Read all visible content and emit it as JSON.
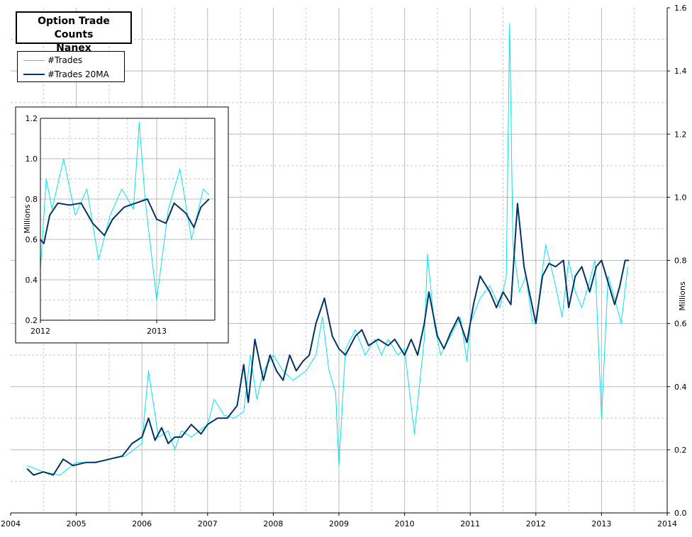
{
  "chart_data": [
    {
      "type": "line",
      "title": "Option Trade Counts",
      "subtitle": "Nanex",
      "ylabel": "Millions",
      "xlabel": "",
      "xlim": [
        2004,
        2014
      ],
      "ylim": [
        0,
        1.6
      ],
      "x_ticks": [
        "2004",
        "2005",
        "2006",
        "2007",
        "2008",
        "2009",
        "2010",
        "2011",
        "2012",
        "2013",
        "2014"
      ],
      "y_ticks": [
        "0.0",
        "0.2",
        "0.4",
        "0.6",
        "0.8",
        "1.0",
        "1.2",
        "1.4",
        "1.6"
      ],
      "grid": true,
      "legend_position": "top-left",
      "series": [
        {
          "name": "#Trades",
          "color": "#00e5ee",
          "x": [
            2004.25,
            2004.5,
            2004.75,
            2005.0,
            2005.25,
            2005.5,
            2005.75,
            2006.0,
            2006.1,
            2006.25,
            2006.4,
            2006.5,
            2006.6,
            2006.75,
            2007.0,
            2007.1,
            2007.25,
            2007.4,
            2007.55,
            2007.65,
            2007.75,
            2007.85,
            2008.0,
            2008.15,
            2008.3,
            2008.5,
            2008.65,
            2008.75,
            2008.85,
            2008.95,
            2009.0,
            2009.1,
            2009.25,
            2009.4,
            2009.55,
            2009.65,
            2009.75,
            2009.9,
            2010.0,
            2010.15,
            2010.3,
            2010.35,
            2010.45,
            2010.55,
            2010.7,
            2010.85,
            2010.95,
            2011.0,
            2011.15,
            2011.3,
            2011.45,
            2011.55,
            2011.6,
            2011.65,
            2011.75,
            2011.85,
            2011.95,
            2012.0,
            2012.15,
            2012.3,
            2012.4,
            2012.5,
            2012.6,
            2012.7,
            2012.8,
            2012.9,
            2013.0,
            2013.1,
            2013.2,
            2013.3,
            2013.4
          ],
          "values": [
            0.15,
            0.13,
            0.12,
            0.16,
            0.16,
            0.17,
            0.18,
            0.22,
            0.45,
            0.24,
            0.26,
            0.2,
            0.26,
            0.24,
            0.28,
            0.36,
            0.31,
            0.3,
            0.32,
            0.5,
            0.36,
            0.45,
            0.5,
            0.45,
            0.42,
            0.45,
            0.5,
            0.62,
            0.45,
            0.38,
            0.15,
            0.52,
            0.58,
            0.5,
            0.55,
            0.5,
            0.55,
            0.5,
            0.52,
            0.25,
            0.55,
            0.82,
            0.6,
            0.5,
            0.56,
            0.62,
            0.48,
            0.6,
            0.68,
            0.72,
            0.65,
            0.75,
            1.55,
            0.85,
            0.7,
            0.75,
            0.6,
            0.6,
            0.85,
            0.72,
            0.62,
            0.8,
            0.7,
            0.65,
            0.72,
            0.8,
            0.3,
            0.75,
            0.68,
            0.6,
            0.78
          ]
        },
        {
          "name": "#Trades 20MA",
          "color": "#003366",
          "x": [
            2004.25,
            2004.35,
            2004.5,
            2004.65,
            2004.8,
            2004.95,
            2005.15,
            2005.3,
            2005.5,
            2005.7,
            2005.85,
            2006.0,
            2006.1,
            2006.2,
            2006.3,
            2006.4,
            2006.5,
            2006.6,
            2006.75,
            2006.9,
            2007.0,
            2007.15,
            2007.3,
            2007.45,
            2007.55,
            2007.62,
            2007.72,
            2007.85,
            2007.95,
            2008.05,
            2008.15,
            2008.25,
            2008.35,
            2008.45,
            2008.55,
            2008.65,
            2008.78,
            2008.9,
            2009.0,
            2009.1,
            2009.25,
            2009.35,
            2009.45,
            2009.6,
            2009.75,
            2009.85,
            2010.0,
            2010.1,
            2010.2,
            2010.3,
            2010.37,
            2010.5,
            2010.6,
            2010.7,
            2010.82,
            2010.95,
            2011.05,
            2011.15,
            2011.3,
            2011.4,
            2011.5,
            2011.62,
            2011.72,
            2011.82,
            2011.9,
            2012.0,
            2012.1,
            2012.2,
            2012.3,
            2012.42,
            2012.5,
            2012.6,
            2012.7,
            2012.82,
            2012.92,
            2013.0,
            2013.1,
            2013.2,
            2013.28,
            2013.36,
            2013.42
          ],
          "values": [
            0.14,
            0.12,
            0.13,
            0.12,
            0.17,
            0.15,
            0.16,
            0.16,
            0.17,
            0.18,
            0.22,
            0.24,
            0.3,
            0.23,
            0.27,
            0.22,
            0.24,
            0.24,
            0.28,
            0.25,
            0.28,
            0.3,
            0.3,
            0.34,
            0.47,
            0.35,
            0.55,
            0.42,
            0.5,
            0.45,
            0.42,
            0.5,
            0.45,
            0.48,
            0.5,
            0.6,
            0.68,
            0.56,
            0.52,
            0.5,
            0.56,
            0.58,
            0.53,
            0.55,
            0.53,
            0.55,
            0.5,
            0.55,
            0.5,
            0.6,
            0.7,
            0.56,
            0.52,
            0.57,
            0.62,
            0.54,
            0.66,
            0.75,
            0.7,
            0.65,
            0.7,
            0.66,
            0.98,
            0.78,
            0.7,
            0.6,
            0.75,
            0.79,
            0.78,
            0.8,
            0.65,
            0.75,
            0.78,
            0.7,
            0.78,
            0.8,
            0.73,
            0.66,
            0.72,
            0.8,
            0.8
          ]
        }
      ]
    },
    {
      "type": "line",
      "title": "",
      "ylabel": "Millions",
      "xlabel": "",
      "xlim": [
        2012,
        2013.5
      ],
      "ylim": [
        0.2,
        1.2
      ],
      "x_ticks": [
        "2012",
        "2013"
      ],
      "y_ticks": [
        "0.2",
        "0.4",
        "0.6",
        "0.8",
        "1.0",
        "1.2"
      ],
      "grid": true,
      "series": [
        {
          "name": "#Trades",
          "color": "#00e5ee",
          "x": [
            2012.0,
            2012.05,
            2012.1,
            2012.2,
            2012.3,
            2012.4,
            2012.5,
            2012.6,
            2012.7,
            2012.8,
            2012.85,
            2012.9,
            2013.0,
            2013.1,
            2013.2,
            2013.3,
            2013.4,
            2013.45
          ],
          "values": [
            0.45,
            0.9,
            0.75,
            1.0,
            0.72,
            0.85,
            0.5,
            0.72,
            0.85,
            0.75,
            1.18,
            0.8,
            0.3,
            0.75,
            0.95,
            0.6,
            0.85,
            0.82
          ]
        },
        {
          "name": "#Trades 20MA",
          "color": "#003366",
          "x": [
            2012.0,
            2012.03,
            2012.08,
            2012.15,
            2012.25,
            2012.35,
            2012.45,
            2012.55,
            2012.62,
            2012.72,
            2012.82,
            2012.92,
            2013.0,
            2013.08,
            2013.15,
            2013.25,
            2013.32,
            2013.38,
            2013.45
          ],
          "values": [
            0.6,
            0.58,
            0.72,
            0.78,
            0.77,
            0.78,
            0.68,
            0.62,
            0.7,
            0.76,
            0.78,
            0.8,
            0.7,
            0.68,
            0.78,
            0.73,
            0.66,
            0.76,
            0.8
          ]
        }
      ]
    }
  ]
}
